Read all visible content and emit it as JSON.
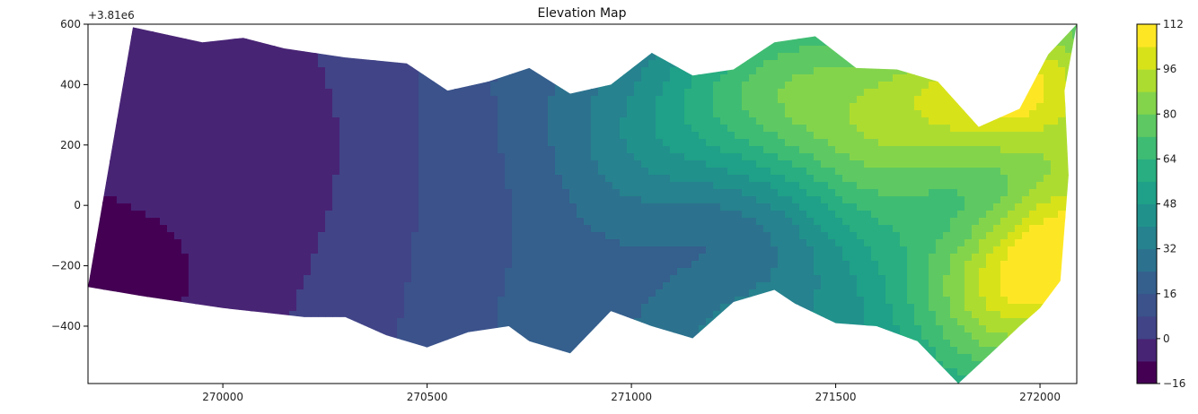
{
  "chart_data": {
    "type": "contour",
    "title": "Elevation Map",
    "xlabel": "",
    "ylabel": "",
    "y_offset_label": "+3.81e6",
    "xlim": [
      269670,
      272090
    ],
    "ylim": [
      -590,
      600
    ],
    "x_ticks": [
      270000,
      270500,
      271000,
      271500,
      272000
    ],
    "x_tick_labels": [
      "270000",
      "270500",
      "271000",
      "271500",
      "272000"
    ],
    "y_ticks": [
      600,
      400,
      200,
      0,
      -200,
      -400
    ],
    "y_tick_labels": [
      "600",
      "400",
      "200",
      "0",
      "−200",
      "−400"
    ],
    "colorbar": {
      "cmap": "viridis",
      "levels": [
        -16,
        -8,
        0,
        8,
        16,
        24,
        32,
        40,
        48,
        56,
        64,
        72,
        80,
        88,
        96,
        104,
        112
      ],
      "tick_values": [
        112,
        96,
        80,
        64,
        48,
        32,
        16,
        0,
        -16
      ],
      "tick_labels": [
        "112",
        "96",
        "80",
        "64",
        "48",
        "32",
        "16",
        "0",
        "−16"
      ],
      "colors": [
        "#440154",
        "#482475",
        "#414487",
        "#3b528b",
        "#355f8d",
        "#2c728e",
        "#26828e",
        "#21918c",
        "#1fa088",
        "#28ae80",
        "#3fbc73",
        "#5ec962",
        "#84d44b",
        "#addc30",
        "#d8e219",
        "#fde725"
      ]
    },
    "grid": false,
    "legend": "colorbar-right",
    "region_boundary": {
      "top": [
        [
          269670,
          -270
        ],
        [
          269780,
          590
        ],
        [
          269950,
          540
        ],
        [
          270050,
          555
        ],
        [
          270150,
          520
        ],
        [
          270300,
          490
        ],
        [
          270450,
          470
        ],
        [
          270550,
          380
        ],
        [
          270650,
          410
        ],
        [
          270750,
          455
        ],
        [
          270850,
          370
        ],
        [
          270950,
          400
        ],
        [
          271050,
          505
        ],
        [
          271150,
          430
        ],
        [
          271250,
          450
        ],
        [
          271350,
          540
        ],
        [
          271450,
          560
        ],
        [
          271550,
          455
        ],
        [
          271650,
          450
        ],
        [
          271750,
          410
        ],
        [
          271850,
          260
        ],
        [
          271950,
          320
        ],
        [
          272020,
          500
        ],
        [
          272090,
          600
        ]
      ],
      "bottom": [
        [
          272090,
          600
        ],
        [
          272060,
          380
        ],
        [
          272070,
          100
        ],
        [
          272050,
          -250
        ],
        [
          272000,
          -340
        ],
        [
          271950,
          -400
        ],
        [
          271880,
          -490
        ],
        [
          271800,
          -590
        ],
        [
          271700,
          -450
        ],
        [
          271600,
          -400
        ],
        [
          271500,
          -390
        ],
        [
          271400,
          -325
        ],
        [
          271350,
          -280
        ],
        [
          271250,
          -320
        ],
        [
          271150,
          -440
        ],
        [
          271050,
          -400
        ],
        [
          270950,
          -350
        ],
        [
          270850,
          -490
        ],
        [
          270750,
          -450
        ],
        [
          270700,
          -400
        ],
        [
          270600,
          -420
        ],
        [
          270500,
          -470
        ],
        [
          270400,
          -430
        ],
        [
          270300,
          -370
        ],
        [
          270200,
          -370
        ],
        [
          270100,
          -355
        ],
        [
          270000,
          -340
        ],
        [
          269900,
          -320
        ],
        [
          269800,
          -300
        ],
        [
          269670,
          -270
        ]
      ]
    },
    "elevation_features": [
      {
        "x": 269720,
        "y": -250,
        "sigma": 180,
        "amplitude": -10
      },
      {
        "x": 270400,
        "y": 200,
        "sigma": 500,
        "amplitude": -4
      },
      {
        "x": 271600,
        "y": 200,
        "sigma": 400,
        "amplitude": 30
      },
      {
        "x": 271700,
        "y": 300,
        "sigma": 200,
        "amplitude": 18
      },
      {
        "x": 271400,
        "y": 400,
        "sigma": 160,
        "amplitude": 14
      },
      {
        "x": 272050,
        "y": -150,
        "sigma": 170,
        "amplitude": 40
      },
      {
        "x": 272000,
        "y": 400,
        "sigma": 150,
        "amplitude": 30
      },
      {
        "x": 271950,
        "y": -320,
        "sigma": 180,
        "amplitude": 22
      },
      {
        "x": 271200,
        "y": -100,
        "sigma": 200,
        "amplitude": -15
      },
      {
        "x": 271450,
        "y": -120,
        "sigma": 180,
        "amplitude": -12
      },
      {
        "x": 271850,
        "y": 20,
        "sigma": 160,
        "amplitude": -14
      },
      {
        "x": 271100,
        "y": 250,
        "sigma": 180,
        "amplitude": 12
      }
    ]
  }
}
